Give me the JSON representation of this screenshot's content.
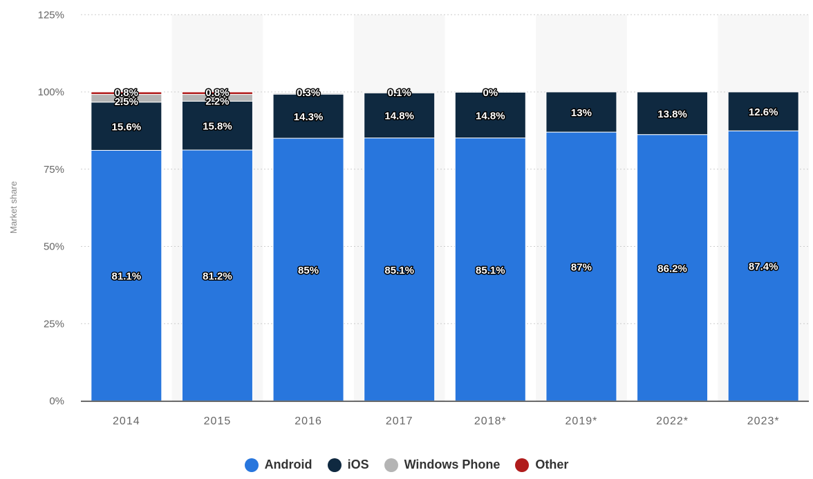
{
  "chart_data": {
    "type": "bar",
    "stacked": true,
    "title": "",
    "xlabel": "",
    "ylabel": "Market share",
    "ylim": [
      0,
      125
    ],
    "yticks": [
      "0%",
      "25%",
      "50%",
      "75%",
      "100%",
      "125%"
    ],
    "ytick_values": [
      0,
      25,
      50,
      75,
      100,
      125
    ],
    "categories": [
      "2014",
      "2015",
      "2016",
      "2017",
      "2018*",
      "2019*",
      "2022*",
      "2023*"
    ],
    "series": [
      {
        "name": "Android",
        "color": "#2876dd",
        "values": [
          81.1,
          81.2,
          85,
          85.1,
          85.1,
          87,
          86.2,
          87.4
        ],
        "labels": [
          "81.1%",
          "81.2%",
          "85%",
          "85.1%",
          "85.1%",
          "87%",
          "86.2%",
          "87.4%"
        ]
      },
      {
        "name": "iOS",
        "color": "#0f2940",
        "values": [
          15.6,
          15.8,
          14.3,
          14.8,
          14.8,
          13,
          13.8,
          12.6
        ],
        "labels": [
          "15.6%",
          "15.8%",
          "14.3%",
          "14.8%",
          "14.8%",
          "13%",
          "13.8%",
          "12.6%"
        ]
      },
      {
        "name": "Windows Phone",
        "color": "#b4b4b4",
        "values": [
          2.5,
          2.2,
          0.3,
          0.1,
          0,
          null,
          null,
          null
        ],
        "labels": [
          "2.5%",
          "2.2%",
          "0.3%",
          "0.1%",
          "0%",
          null,
          null,
          null
        ]
      },
      {
        "name": "Other",
        "color": "#b01c1c",
        "values": [
          0.8,
          0.8,
          null,
          null,
          null,
          null,
          null,
          null
        ],
        "labels": [
          "0.8%",
          "0.8%",
          null,
          null,
          null,
          null,
          null,
          null
        ]
      }
    ],
    "grid": true,
    "legend": "bottom-center"
  }
}
